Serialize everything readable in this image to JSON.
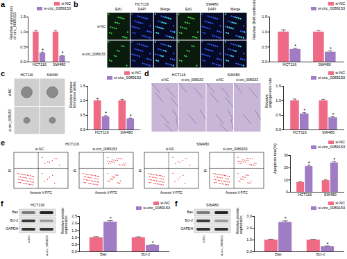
{
  "chart_data": [
    {
      "panel": "a",
      "type": "bar",
      "ylabel": "Relative expression of circ_0089153",
      "categories": [
        "HCT116",
        "SW480"
      ],
      "series": [
        {
          "name": "si-NC",
          "color": "#ef6b85",
          "values": [
            1.0,
            1.0
          ],
          "errors": [
            0.06,
            0.05
          ]
        },
        {
          "name": "si-circ_0089153",
          "color": "#a07cc5",
          "values": [
            0.3,
            0.2
          ],
          "errors": [
            0.03,
            0.02
          ]
        }
      ],
      "annotations": [
        {
          "text": "*",
          "category": "HCT116",
          "series": "si-circ_0089153"
        },
        {
          "text": "*",
          "category": "SW480",
          "series": "si-circ_0089153"
        }
      ],
      "ylim": [
        0,
        1.5
      ],
      "yticks": [
        {
          "value": 0,
          "label": "0.0"
        },
        0.5,
        {
          "value": 1,
          "label": "1.0"
        },
        1.5
      ],
      "legend": "top-right"
    },
    {
      "panel": "b",
      "type": "bar",
      "ylabel": "Relative DNA synthesis",
      "categories": [
        "HCT116",
        "SW480"
      ],
      "series": [
        {
          "name": "si-NC",
          "color": "#ef6b85",
          "values": [
            1.0,
            1.0
          ],
          "errors": [
            0.07,
            0.06
          ]
        },
        {
          "name": "si-circ_0089153",
          "color": "#a07cc5",
          "values": [
            0.42,
            0.33
          ],
          "errors": [
            0.04,
            0.04
          ]
        }
      ],
      "annotations": [
        {
          "text": "*",
          "category": "HCT116",
          "series": "si-circ_0089153"
        },
        {
          "text": "*",
          "category": "SW480",
          "series": "si-circ_0089153"
        }
      ],
      "ylim": [
        0,
        1.5
      ],
      "yticks": [
        {
          "value": 0,
          "label": "0.0"
        },
        0.5,
        {
          "value": 1,
          "label": "1.0"
        },
        1.5
      ],
      "legend": "top-right"
    },
    {
      "panel": "c",
      "type": "bar",
      "ylabel": "Relative sphere formation ability",
      "categories": [
        "HCT116",
        "SW480"
      ],
      "series": [
        {
          "name": "si-NC",
          "color": "#ef6b85",
          "values": [
            1.0,
            1.0
          ],
          "errors": [
            0.08,
            0.05
          ]
        },
        {
          "name": "si-circ_0089153",
          "color": "#a07cc5",
          "values": [
            0.45,
            0.38
          ],
          "errors": [
            0.04,
            0.03
          ]
        }
      ],
      "annotations": [
        {
          "text": "*",
          "category": "HCT116",
          "series": "si-circ_0089153"
        },
        {
          "text": "*",
          "category": "SW480",
          "series": "si-circ_0089153"
        }
      ],
      "ylim": [
        0,
        1.5
      ],
      "yticks": [
        {
          "value": 0,
          "label": "0.0"
        },
        0.5,
        {
          "value": 1,
          "label": "1.0"
        },
        1.5
      ],
      "legend": "top-right"
    },
    {
      "panel": "d",
      "type": "bar",
      "ylabel": "Relative angiogenesis rate",
      "categories": [
        "HCT116",
        "SW480"
      ],
      "series": [
        {
          "name": "si-NC",
          "color": "#ef6b85",
          "values": [
            1.0,
            1.0
          ],
          "errors": [
            0.06,
            0.05
          ]
        },
        {
          "name": "si-circ_0089153",
          "color": "#a07cc5",
          "values": [
            0.55,
            0.42
          ],
          "errors": [
            0.04,
            0.03
          ]
        }
      ],
      "annotations": [
        {
          "text": "*",
          "category": "HCT116",
          "series": "si-circ_0089153"
        },
        {
          "text": "*",
          "category": "SW480",
          "series": "si-circ_0089153"
        }
      ],
      "ylim": [
        0,
        1.5
      ],
      "yticks": [
        {
          "value": 0,
          "label": "0.0"
        },
        0.5,
        {
          "value": 1,
          "label": "1.0"
        },
        1.5
      ],
      "legend": "top-right"
    },
    {
      "panel": "e",
      "type": "bar",
      "ylabel": "Apoptosis rate(%)",
      "categories": [
        "HCT116",
        "SW480"
      ],
      "series": [
        {
          "name": "si-NC",
          "color": "#ef6b85",
          "values": [
            8,
            9.5
          ],
          "errors": [
            0.5,
            0.6
          ]
        },
        {
          "name": "si-circ_0089153",
          "color": "#a07cc5",
          "values": [
            21,
            24
          ],
          "errors": [
            1.2,
            1.0
          ]
        }
      ],
      "annotations": [
        {
          "text": "*",
          "category": "HCT116",
          "series": "si-circ_0089153"
        },
        {
          "text": "*",
          "category": "SW480",
          "series": "si-circ_0089153"
        }
      ],
      "ylim": [
        0,
        30
      ],
      "yticks": [
        0,
        10,
        20,
        30
      ],
      "legend": "top-right"
    },
    {
      "panel": "f",
      "type": "bar",
      "ylabel": "Relative protein expression",
      "categories": [
        "Bax",
        "Bcl-2"
      ],
      "series": [
        {
          "name": "si-NC",
          "color": "#ef6b85",
          "values": [
            1.0,
            1.0
          ],
          "errors": [
            0.06,
            0.05
          ]
        },
        {
          "name": "si-circ_0089153",
          "color": "#a07cc5",
          "values": [
            2.1,
            0.45
          ],
          "errors": [
            0.1,
            0.04
          ]
        }
      ],
      "annotations": [
        {
          "text": "*",
          "category": "Bax",
          "series": "si-circ_0089153"
        },
        {
          "text": "*",
          "category": "Bcl-2",
          "series": "si-circ_0089153"
        }
      ],
      "ylim": [
        0,
        2.5
      ],
      "yticks": [
        {
          "value": 0,
          "label": "0.0"
        },
        0.5,
        {
          "value": 1,
          "label": "1.0"
        },
        1.5,
        {
          "value": 2,
          "label": "2.0"
        },
        2.5
      ],
      "legend": "top-right"
    },
    {
      "panel": "f",
      "type": "bar",
      "ylabel": "Relative protein expression",
      "categories": [
        "Bax",
        "Bcl-2"
      ],
      "series": [
        {
          "name": "si-NC",
          "color": "#ef6b85",
          "values": [
            1.0,
            1.0
          ],
          "errors": [
            0.06,
            0.05
          ]
        },
        {
          "name": "si-circ_0089153",
          "color": "#a07cc5",
          "values": [
            2.5,
            0.45
          ],
          "errors": [
            0.12,
            0.04
          ]
        }
      ],
      "annotations": [
        {
          "text": "*",
          "category": "Bax",
          "series": "si-circ_0089153"
        },
        {
          "text": "*",
          "category": "Bcl-2",
          "series": "si-circ_0089153"
        }
      ],
      "ylim": [
        0,
        3
      ],
      "yticks": [
        {
          "value": 0,
          "label": "0.0"
        },
        {
          "value": 1,
          "label": "1.0"
        },
        {
          "value": 2,
          "label": "2.0"
        },
        {
          "value": 3,
          "label": "3.0"
        }
      ],
      "legend": "top-right"
    }
  ],
  "images": {
    "b": {
      "groups": [
        {
          "title": "HCT116",
          "columns": [
            "EdU",
            "DAPI",
            "Merge"
          ]
        },
        {
          "title": "SW480",
          "columns": [
            "EdU",
            "DAPI",
            "Merge"
          ]
        }
      ],
      "rows": [
        "si-NC",
        "si-circ_0089153"
      ]
    },
    "c": {
      "columns": [
        "HCT116",
        "SW480"
      ],
      "rows": [
        "si-NC",
        "si-circ_0089153"
      ]
    },
    "d": {
      "groups": [
        {
          "title": "HCT116",
          "columns": [
            "si-NC",
            "si-circ_0089153"
          ]
        },
        {
          "title": "SW480",
          "columns": [
            "si-NC",
            "si-circ_0089153"
          ]
        }
      ]
    },
    "e": {
      "groups": [
        {
          "title": "HCT116",
          "columns": [
            "si-NC",
            "si-circ_0089153"
          ]
        },
        {
          "title": "SW480",
          "columns": [
            "si-NC",
            "si-circ_0089153"
          ]
        }
      ],
      "xlabel": "Annexin V-FITC",
      "ylabel": "PI"
    },
    "f": [
      {
        "title": "HCT116",
        "bands": [
          "Bax",
          "Bcl-2",
          "GAPDH"
        ],
        "lanes": [
          "si-NC",
          "si-circ_0089153"
        ]
      },
      {
        "title": "SW480",
        "bands": [
          "Bax",
          "Bcl-2",
          "GAPDH"
        ],
        "lanes": [
          "si-NC",
          "si-circ_0089153"
        ]
      }
    ]
  }
}
